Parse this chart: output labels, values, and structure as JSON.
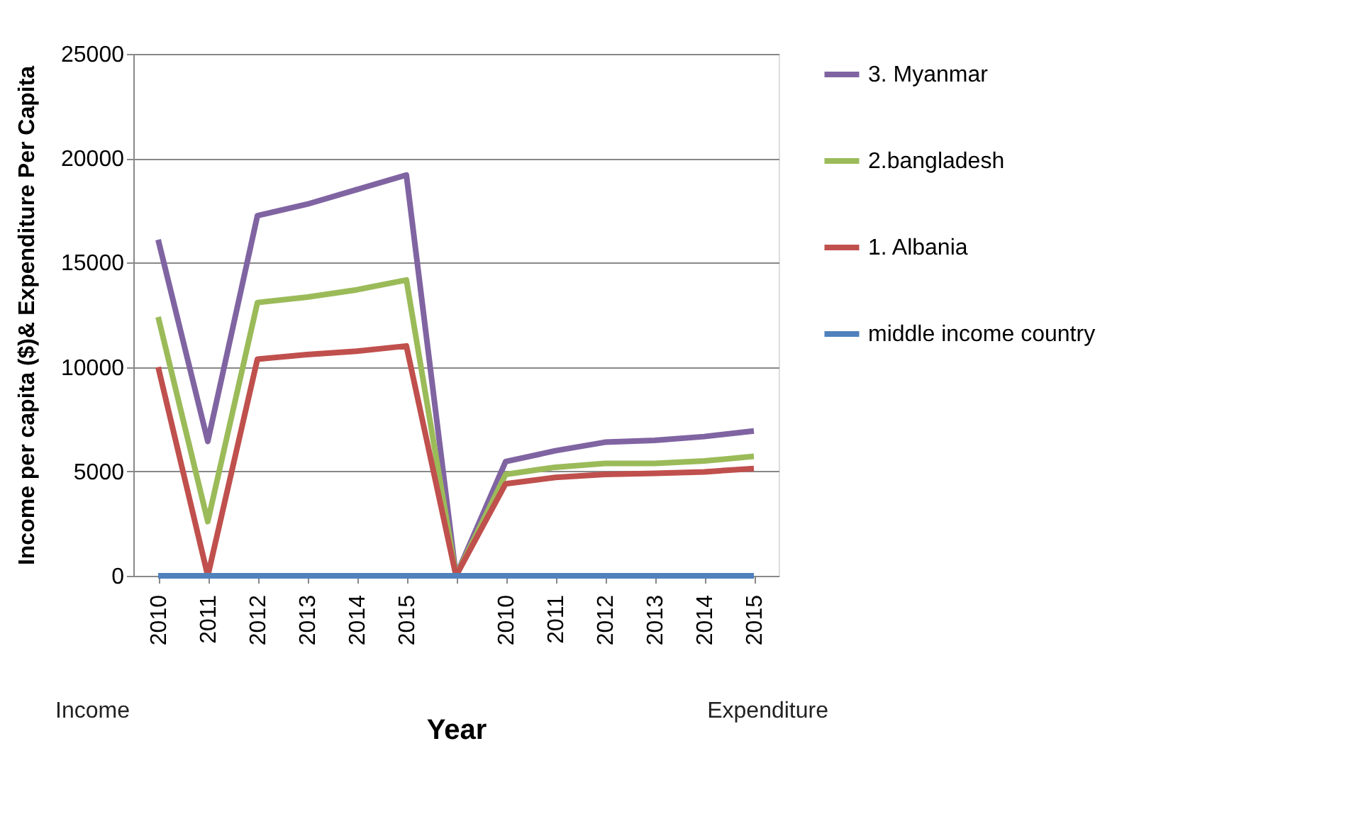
{
  "chart_data": {
    "type": "line",
    "xlabel": "Year",
    "ylabel": "Income per capita ($)& Expenditure Per Capita",
    "categories": [
      "2010",
      "2011",
      "2012",
      "2013",
      "2014",
      "2015",
      null,
      "2010",
      "2011",
      "2012",
      "2013",
      "2014",
      "2015"
    ],
    "series": [
      {
        "name": "3. Myanmar",
        "color": "#8064a2",
        "values": [
          16100,
          6440,
          17250,
          17800,
          18500,
          19200,
          0,
          5470,
          5990,
          6400,
          6490,
          6670,
          6940
        ]
      },
      {
        "name": "2.bangladesh",
        "color": "#9bbb59",
        "values": [
          12400,
          2600,
          13090,
          13350,
          13700,
          14170,
          0,
          4860,
          5200,
          5380,
          5380,
          5500,
          5720
        ]
      },
      {
        "name": "1. Albania",
        "color": "#c0504d",
        "values": [
          10000,
          0,
          10380,
          10600,
          10760,
          11010,
          0,
          4410,
          4710,
          4860,
          4910,
          4980,
          5140
        ]
      },
      {
        "name": "middle  income country",
        "color": "#4f81bd",
        "values": [
          0,
          0,
          0,
          0,
          0,
          0,
          0,
          0,
          0,
          0,
          0,
          0,
          0
        ]
      }
    ],
    "ylim": [
      0,
      25000
    ],
    "yticks": [
      0,
      5000,
      10000,
      15000,
      20000,
      25000
    ],
    "grid": "y",
    "legend": "right",
    "marker": "none",
    "line_style": "solid",
    "annotations": [
      "Income",
      "Expenditure"
    ]
  }
}
